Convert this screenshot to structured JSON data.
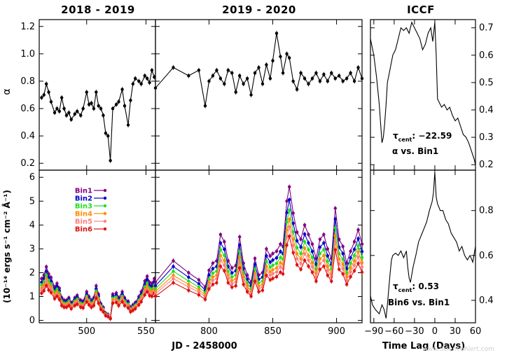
{
  "titles": {
    "left": "2018 - 2019",
    "middle": "2019 - 2020",
    "right": "ICCF"
  },
  "xlabels": {
    "light_curve": "JD - 2458000",
    "iccf": "Time Lag (Days)"
  },
  "ylabels": {
    "alpha": "α",
    "flux": "(10⁻¹⁴ ergs s⁻¹ cm⁻² Å⁻¹)"
  },
  "annotations": {
    "top_tau": "τ",
    "top_tau_sub": "cent",
    "top_tau_value": ": −22.59",
    "top_pair": "α vs. Bin1",
    "bottom_tau": "τ",
    "bottom_tau_sub": "cent",
    "bottom_tau_value": ": 0.53",
    "bottom_pair": "Bin6 vs. Bin1"
  },
  "watermark": "www.ScienceAlert.com",
  "colors": {
    "alpha": "#000000",
    "Bin1": "#800080",
    "Bin2": "#0000cc",
    "Bin3": "#22dd22",
    "Bin4": "#ff8c00",
    "Bin5": "#ff7f7f",
    "Bin6": "#dd1111"
  },
  "chart_data": [
    {
      "id": "alpha_2018",
      "type": "line",
      "title": "2018 - 2019",
      "ylabel": "α",
      "xlim": [
        460,
        558
      ],
      "ylim": [
        0.15,
        1.25
      ],
      "xticks": [
        500,
        550
      ],
      "yticks": [
        0.2,
        0.4,
        0.6,
        0.8,
        1.0,
        1.2
      ],
      "x": [
        462,
        464,
        466,
        468,
        470,
        473,
        475,
        477,
        479,
        481,
        483,
        485,
        487,
        490,
        492,
        495,
        497,
        500,
        502,
        504,
        506,
        508,
        510,
        512,
        514,
        516,
        518,
        520,
        522,
        525,
        527,
        530,
        532,
        535,
        537,
        539,
        541,
        544,
        546,
        549,
        551,
        553,
        555,
        557
      ],
      "values": [
        0.68,
        0.7,
        0.78,
        0.72,
        0.65,
        0.57,
        0.6,
        0.58,
        0.68,
        0.6,
        0.55,
        0.57,
        0.52,
        0.56,
        0.58,
        0.55,
        0.6,
        0.72,
        0.63,
        0.64,
        0.6,
        0.72,
        0.62,
        0.6,
        0.55,
        0.42,
        0.4,
        0.22,
        0.6,
        0.63,
        0.65,
        0.74,
        0.62,
        0.48,
        0.66,
        0.78,
        0.82,
        0.8,
        0.78,
        0.84,
        0.82,
        0.79,
        0.88,
        0.83
      ]
    },
    {
      "id": "alpha_2019",
      "type": "line",
      "title": "2019 - 2020",
      "xlim": [
        758,
        920
      ],
      "ylim": [
        0.15,
        1.25
      ],
      "xticks": [
        800,
        850,
        900
      ],
      "x": [
        758,
        772,
        784,
        792,
        797,
        800,
        803,
        806,
        809,
        812,
        815,
        818,
        821,
        824,
        827,
        830,
        833,
        836,
        839,
        842,
        845,
        848,
        850,
        853,
        856,
        858,
        861,
        863,
        866,
        869,
        872,
        875,
        878,
        881,
        884,
        887,
        890,
        893,
        896,
        899,
        902,
        905,
        908,
        911,
        914,
        917,
        920
      ],
      "values": [
        0.75,
        0.9,
        0.84,
        0.88,
        0.62,
        0.8,
        0.84,
        0.88,
        0.82,
        0.78,
        0.88,
        0.86,
        0.72,
        0.84,
        0.78,
        0.82,
        0.7,
        0.86,
        0.9,
        0.78,
        0.92,
        0.82,
        0.95,
        1.15,
        0.98,
        0.86,
        1.0,
        0.97,
        0.8,
        0.74,
        0.86,
        0.82,
        0.78,
        0.82,
        0.86,
        0.8,
        0.85,
        0.8,
        0.86,
        0.82,
        0.84,
        0.8,
        0.82,
        0.86,
        0.8,
        0.9,
        0.82
      ]
    },
    {
      "id": "iccf_alpha_bin1",
      "type": "line",
      "xlim": [
        -95,
        60
      ],
      "ylim": [
        0.18,
        0.73
      ],
      "yticks": [
        0.2,
        0.3,
        0.4,
        0.5,
        0.6,
        0.7
      ],
      "x": [
        -95,
        -90,
        -86,
        -82,
        -80,
        -78,
        -76,
        -74,
        -72,
        -70,
        -66,
        -62,
        -58,
        -54,
        -50,
        -46,
        -42,
        -38,
        -34,
        -30,
        -26,
        -22,
        -18,
        -14,
        -10,
        -6,
        -3,
        0,
        2,
        4,
        6,
        10,
        14,
        18,
        22,
        26,
        30,
        34,
        38,
        42,
        46,
        50,
        54,
        58,
        60
      ],
      "values": [
        0.66,
        0.6,
        0.52,
        0.42,
        0.35,
        0.28,
        0.3,
        0.35,
        0.42,
        0.5,
        0.55,
        0.6,
        0.62,
        0.66,
        0.7,
        0.69,
        0.7,
        0.68,
        0.72,
        0.7,
        0.68,
        0.66,
        0.62,
        0.64,
        0.68,
        0.7,
        0.65,
        0.72,
        0.6,
        0.44,
        0.43,
        0.41,
        0.42,
        0.4,
        0.41,
        0.38,
        0.36,
        0.37,
        0.34,
        0.31,
        0.3,
        0.28,
        0.25,
        0.22,
        0.2
      ]
    },
    {
      "id": "flux_2018",
      "type": "line",
      "ylabel": "(10⁻¹⁴ ergs s⁻¹ cm⁻² Å⁻¹)",
      "xlim": [
        460,
        558
      ],
      "ylim": [
        -0.1,
        6.3
      ],
      "xticks": [
        500,
        550
      ],
      "yticks": [
        0,
        1,
        2,
        3,
        4,
        5,
        6
      ],
      "x": [
        462,
        464,
        466,
        468,
        470,
        473,
        475,
        477,
        479,
        481,
        483,
        485,
        487,
        490,
        492,
        495,
        497,
        500,
        502,
        504,
        506,
        508,
        510,
        512,
        514,
        516,
        518,
        520,
        522,
        525,
        527,
        530,
        532,
        535,
        537,
        539,
        541,
        544,
        546,
        549,
        551,
        553,
        555,
        557
      ],
      "series": [
        {
          "name": "Bin1",
          "values": [
            1.75,
            1.9,
            2.25,
            1.95,
            1.8,
            1.4,
            1.55,
            1.35,
            0.95,
            0.85,
            0.85,
            0.95,
            0.75,
            0.95,
            1.05,
            0.85,
            0.8,
            1.2,
            1.0,
            0.85,
            0.95,
            1.45,
            1.1,
            0.7,
            0.55,
            0.3,
            0.25,
            0.1,
            1.1,
            1.15,
            0.95,
            1.2,
            0.95,
            0.8,
            0.55,
            0.65,
            0.75,
            1.0,
            1.2,
            1.65,
            1.85,
            1.6,
            1.55,
            1.75
          ]
        },
        {
          "name": "Bin2",
          "values": [
            1.6,
            1.75,
            2.05,
            1.8,
            1.65,
            1.3,
            1.42,
            1.25,
            0.88,
            0.78,
            0.78,
            0.88,
            0.7,
            0.88,
            0.97,
            0.78,
            0.74,
            1.1,
            0.92,
            0.78,
            0.88,
            1.33,
            1.01,
            0.65,
            0.5,
            0.27,
            0.23,
            0.09,
            1.01,
            1.06,
            0.88,
            1.1,
            0.88,
            0.74,
            0.5,
            0.6,
            0.69,
            0.92,
            1.1,
            1.52,
            1.7,
            1.47,
            1.42,
            1.61
          ]
        },
        {
          "name": "Bin3",
          "values": [
            1.48,
            1.61,
            1.9,
            1.65,
            1.52,
            1.19,
            1.31,
            1.15,
            0.81,
            0.72,
            0.72,
            0.81,
            0.64,
            0.81,
            0.89,
            0.72,
            0.68,
            1.01,
            0.85,
            0.72,
            0.81,
            1.22,
            0.93,
            0.6,
            0.47,
            0.25,
            0.21,
            0.08,
            0.93,
            0.97,
            0.81,
            1.01,
            0.81,
            0.68,
            0.47,
            0.55,
            0.64,
            0.85,
            1.01,
            1.4,
            1.56,
            1.35,
            1.31,
            1.48
          ]
        },
        {
          "name": "Bin4",
          "values": [
            1.36,
            1.48,
            1.75,
            1.52,
            1.4,
            1.09,
            1.2,
            1.05,
            0.74,
            0.66,
            0.66,
            0.74,
            0.59,
            0.74,
            0.82,
            0.66,
            0.62,
            0.94,
            0.78,
            0.66,
            0.74,
            1.13,
            0.86,
            0.55,
            0.43,
            0.23,
            0.2,
            0.08,
            0.86,
            0.9,
            0.74,
            0.94,
            0.74,
            0.62,
            0.43,
            0.51,
            0.59,
            0.78,
            0.94,
            1.29,
            1.44,
            1.25,
            1.2,
            1.36
          ]
        },
        {
          "name": "Bin5",
          "values": [
            1.26,
            1.37,
            1.62,
            1.41,
            1.3,
            1.01,
            1.11,
            0.97,
            0.69,
            0.61,
            0.61,
            0.69,
            0.55,
            0.69,
            0.76,
            0.61,
            0.58,
            0.87,
            0.72,
            0.61,
            0.69,
            1.05,
            0.79,
            0.51,
            0.4,
            0.22,
            0.18,
            0.07,
            0.79,
            0.83,
            0.69,
            0.87,
            0.69,
            0.58,
            0.4,
            0.47,
            0.55,
            0.72,
            0.87,
            1.19,
            1.33,
            1.16,
            1.11,
            1.26
          ]
        },
        {
          "name": "Bin6",
          "values": [
            1.14,
            1.24,
            1.46,
            1.27,
            1.17,
            0.91,
            1.01,
            0.88,
            0.62,
            0.55,
            0.55,
            0.62,
            0.49,
            0.62,
            0.68,
            0.55,
            0.52,
            0.78,
            0.65,
            0.55,
            0.62,
            0.94,
            0.72,
            0.46,
            0.36,
            0.2,
            0.16,
            0.07,
            0.72,
            0.75,
            0.62,
            0.78,
            0.62,
            0.52,
            0.36,
            0.42,
            0.49,
            0.65,
            0.78,
            1.07,
            1.2,
            1.04,
            1.01,
            1.14
          ]
        }
      ]
    },
    {
      "id": "flux_2019",
      "type": "line",
      "xlim": [
        758,
        920
      ],
      "ylim": [
        -0.1,
        6.3
      ],
      "xticks": [
        800,
        850,
        900
      ],
      "xlabel": "JD - 2458000",
      "x": [
        758,
        772,
        784,
        792,
        797,
        800,
        803,
        806,
        809,
        812,
        815,
        818,
        821,
        824,
        827,
        830,
        833,
        836,
        839,
        842,
        845,
        848,
        850,
        853,
        856,
        858,
        861,
        863,
        866,
        869,
        872,
        875,
        878,
        881,
        884,
        887,
        890,
        893,
        896,
        899,
        902,
        905,
        908,
        911,
        914,
        917,
        920
      ],
      "series": [
        {
          "name": "Bin1",
          "values": [
            1.6,
            2.5,
            2.0,
            1.7,
            1.4,
            2.1,
            2.4,
            2.5,
            3.6,
            3.3,
            2.5,
            2.2,
            2.3,
            3.5,
            2.4,
            1.9,
            1.6,
            2.6,
            1.9,
            2.0,
            3.0,
            2.7,
            2.8,
            2.9,
            3.2,
            3.1,
            5.0,
            5.6,
            4.5,
            3.7,
            3.4,
            4.0,
            3.6,
            3.2,
            2.6,
            3.4,
            3.6,
            3.0,
            2.6,
            4.7,
            3.4,
            3.1,
            2.4,
            2.9,
            3.3,
            3.8,
            3.2
          ]
        },
        {
          "name": "Bin2",
          "values": [
            1.45,
            2.26,
            1.81,
            1.54,
            1.27,
            1.9,
            2.17,
            2.26,
            3.25,
            2.98,
            2.26,
            1.99,
            2.08,
            3.16,
            2.17,
            1.72,
            1.45,
            2.35,
            1.72,
            1.81,
            2.71,
            2.44,
            2.53,
            2.62,
            2.89,
            2.8,
            4.52,
            5.06,
            4.07,
            3.34,
            3.07,
            3.62,
            3.25,
            2.89,
            2.35,
            3.07,
            3.25,
            2.71,
            2.35,
            4.25,
            3.07,
            2.8,
            2.17,
            2.62,
            2.98,
            3.43,
            2.89
          ]
        },
        {
          "name": "Bin3",
          "values": [
            1.32,
            2.06,
            1.65,
            1.4,
            1.16,
            1.73,
            1.98,
            2.06,
            2.97,
            2.72,
            2.06,
            1.82,
            1.9,
            2.89,
            1.98,
            1.57,
            1.32,
            2.15,
            1.57,
            1.65,
            2.48,
            2.23,
            2.31,
            2.39,
            2.64,
            2.56,
            4.13,
            4.62,
            3.71,
            3.05,
            2.8,
            3.3,
            2.97,
            2.64,
            2.15,
            2.8,
            2.97,
            2.48,
            2.15,
            3.88,
            2.8,
            2.56,
            1.98,
            2.39,
            2.72,
            3.14,
            2.64
          ]
        },
        {
          "name": "Bin4",
          "values": [
            1.21,
            1.89,
            1.51,
            1.29,
            1.06,
            1.59,
            1.82,
            1.89,
            2.72,
            2.5,
            1.89,
            1.67,
            1.74,
            2.65,
            1.82,
            1.44,
            1.21,
            1.97,
            1.44,
            1.51,
            2.27,
            2.04,
            2.12,
            2.2,
            2.42,
            2.35,
            3.79,
            4.24,
            3.41,
            2.8,
            2.58,
            3.03,
            2.72,
            2.42,
            1.97,
            2.58,
            2.72,
            2.27,
            1.97,
            3.56,
            2.58,
            2.35,
            1.82,
            2.2,
            2.5,
            2.88,
            2.42
          ]
        },
        {
          "name": "Bin5",
          "values": [
            1.12,
            1.75,
            1.4,
            1.19,
            0.98,
            1.47,
            1.68,
            1.75,
            2.52,
            2.31,
            1.75,
            1.54,
            1.61,
            2.45,
            1.68,
            1.33,
            1.12,
            1.82,
            1.33,
            1.4,
            2.1,
            1.89,
            1.96,
            2.03,
            2.24,
            2.17,
            3.5,
            3.92,
            3.15,
            2.59,
            2.38,
            2.8,
            2.52,
            2.24,
            1.82,
            2.38,
            2.52,
            2.1,
            1.82,
            3.29,
            2.38,
            2.17,
            1.68,
            2.03,
            2.31,
            2.66,
            2.24
          ]
        },
        {
          "name": "Bin6",
          "values": [
            1.01,
            1.58,
            1.26,
            1.07,
            0.88,
            1.32,
            1.51,
            1.58,
            2.27,
            2.08,
            1.58,
            1.39,
            1.45,
            2.2,
            1.51,
            1.2,
            1.01,
            1.64,
            1.2,
            1.26,
            1.89,
            1.7,
            1.76,
            1.83,
            2.02,
            1.95,
            3.15,
            3.53,
            2.84,
            2.33,
            2.14,
            2.52,
            2.27,
            2.02,
            1.64,
            2.14,
            2.27,
            1.89,
            1.64,
            2.96,
            2.14,
            1.95,
            1.51,
            1.83,
            2.08,
            2.39,
            2.02
          ]
        }
      ]
    },
    {
      "id": "iccf_bin6_bin1",
      "type": "line",
      "xlabel": "Time Lag (Days)",
      "xlim": [
        -95,
        60
      ],
      "ylim": [
        0.3,
        0.98
      ],
      "xticks": [
        -90,
        -60,
        -30,
        0,
        30,
        60
      ],
      "xtick_labels": [
        "−90",
        "−60",
        "−30",
        "0",
        "30",
        "60"
      ],
      "yticks": [
        0.4,
        0.6,
        0.8
      ],
      "x": [
        -95,
        -92,
        -88,
        -85,
        -82,
        -78,
        -75,
        -72,
        -70,
        -68,
        -66,
        -64,
        -62,
        -58,
        -54,
        -50,
        -46,
        -42,
        -40,
        -38,
        -36,
        -32,
        -28,
        -24,
        -20,
        -16,
        -12,
        -8,
        -4,
        -2,
        0,
        2,
        4,
        8,
        12,
        16,
        20,
        24,
        28,
        32,
        36,
        40,
        44,
        48,
        52,
        56,
        60
      ],
      "values": [
        0.42,
        0.38,
        0.36,
        0.35,
        0.34,
        0.38,
        0.36,
        0.32,
        0.38,
        0.45,
        0.52,
        0.58,
        0.6,
        0.61,
        0.6,
        0.62,
        0.59,
        0.62,
        0.55,
        0.5,
        0.48,
        0.55,
        0.6,
        0.66,
        0.69,
        0.72,
        0.75,
        0.8,
        0.84,
        0.88,
        0.97,
        0.86,
        0.83,
        0.8,
        0.8,
        0.76,
        0.74,
        0.7,
        0.68,
        0.66,
        0.62,
        0.64,
        0.6,
        0.58,
        0.6,
        0.57,
        0.64
      ]
    }
  ]
}
